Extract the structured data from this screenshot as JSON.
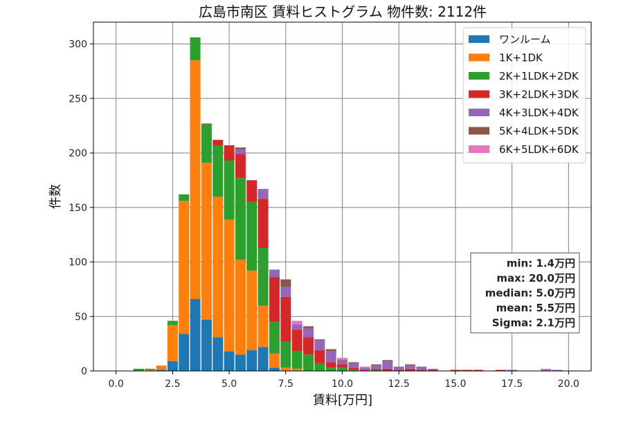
{
  "chart_data": {
    "type": "bar",
    "stacked": true,
    "title": "広島市南区 賃料ヒストグラム 物件数: 2112件",
    "xlabel": "賃料[万円]",
    "ylabel": "件数",
    "xlim": [
      -1,
      21
    ],
    "ylim": [
      0,
      320
    ],
    "xticks": [
      0,
      2.5,
      5,
      7.5,
      10,
      12.5,
      15,
      17.5,
      20
    ],
    "xtick_labels": [
      "0.0",
      "2.5",
      "5.0",
      "7.5",
      "10.0",
      "12.5",
      "15.0",
      "17.5",
      "20.0"
    ],
    "yticks": [
      0,
      50,
      100,
      150,
      200,
      250,
      300
    ],
    "ytick_labels": [
      "0",
      "50",
      "100",
      "150",
      "200",
      "250",
      "300"
    ],
    "grid": true,
    "legend_position": "top-right",
    "bin_width": 0.5,
    "x": [
      1.0,
      1.5,
      2.0,
      2.5,
      3.0,
      3.5,
      4.0,
      4.5,
      5.0,
      5.5,
      6.0,
      6.5,
      7.0,
      7.5,
      8.0,
      8.5,
      9.0,
      9.5,
      10.0,
      10.5,
      11.0,
      11.5,
      12.0,
      12.5,
      13.0,
      13.5,
      14.0,
      14.5,
      15.0,
      15.5,
      16.0,
      16.5,
      17.0,
      17.5,
      18.0,
      18.5,
      19.0,
      19.5
    ],
    "series": [
      {
        "name": "ワンルーム",
        "color": "#1f77b4",
        "values": [
          0,
          0,
          1,
          9,
          34,
          66,
          47,
          31,
          18,
          15,
          19,
          22,
          3,
          0,
          0,
          0,
          0,
          0,
          0,
          0,
          0,
          0,
          0,
          0,
          0,
          0,
          0,
          0,
          0,
          0,
          0,
          0,
          0,
          0,
          0,
          0,
          0,
          0
        ]
      },
      {
        "name": "1K+1DK",
        "color": "#ff7f0e",
        "values": [
          0,
          1,
          4,
          33,
          122,
          219,
          144,
          129,
          121,
          87,
          73,
          38,
          13,
          3,
          2,
          0,
          0,
          0,
          0,
          0,
          0,
          0,
          0,
          0,
          0,
          0,
          0,
          0,
          0,
          0,
          0,
          0,
          0,
          0,
          0,
          0,
          0,
          0
        ]
      },
      {
        "name": "2K+1LDK+2DK",
        "color": "#2ca02c",
        "values": [
          2,
          1,
          0,
          4,
          6,
          21,
          35,
          47,
          54,
          75,
          63,
          53,
          29,
          24,
          16,
          15,
          7,
          3,
          3,
          1,
          0,
          1,
          0,
          0,
          0,
          0,
          0,
          0,
          0,
          0,
          0,
          0,
          0,
          0,
          0,
          0,
          0,
          0
        ]
      },
      {
        "name": "3K+2LDK+3DK",
        "color": "#d62728",
        "values": [
          0,
          0,
          0,
          0,
          0,
          0,
          0,
          5,
          14,
          22,
          20,
          45,
          41,
          41,
          20,
          16,
          12,
          5,
          3,
          2,
          1,
          1,
          2,
          1,
          2,
          1,
          1,
          0,
          1,
          1,
          1,
          0,
          1,
          0,
          0,
          0,
          0,
          0
        ]
      },
      {
        "name": "4K+3LDK+4DK",
        "color": "#9467bd",
        "values": [
          0,
          0,
          0,
          0,
          0,
          0,
          0,
          0,
          0,
          4,
          0,
          9,
          7,
          9,
          5,
          8,
          9,
          10,
          3,
          4,
          2,
          3,
          7,
          3,
          3,
          3,
          1,
          0,
          0,
          0,
          0,
          0,
          0,
          1,
          0,
          0,
          1,
          1
        ]
      },
      {
        "name": "5K+4LDK+5DK",
        "color": "#8c564b",
        "values": [
          0,
          0,
          0,
          0,
          0,
          0,
          1,
          0,
          0,
          2,
          0,
          0,
          0,
          7,
          0,
          2,
          1,
          2,
          1,
          1,
          0,
          1,
          1,
          0,
          1,
          0,
          0,
          0,
          0,
          0,
          0,
          0,
          0,
          0,
          0,
          0,
          0,
          0
        ]
      },
      {
        "name": "6K+5LDK+6DK",
        "color": "#e377c2",
        "values": [
          0,
          0,
          0,
          0,
          0,
          0,
          0,
          0,
          0,
          0,
          0,
          0,
          0,
          0,
          3,
          0,
          0,
          0,
          2,
          0,
          1,
          0,
          0,
          0,
          0,
          0,
          0,
          0,
          0,
          0,
          0,
          0,
          0,
          0,
          0,
          0,
          1,
          0
        ]
      }
    ],
    "stats": [
      "min: 1.4万円",
      "max: 20.0万円",
      "median: 5.0万円",
      "mean: 5.5万円",
      "Sigma: 2.1万円"
    ]
  }
}
